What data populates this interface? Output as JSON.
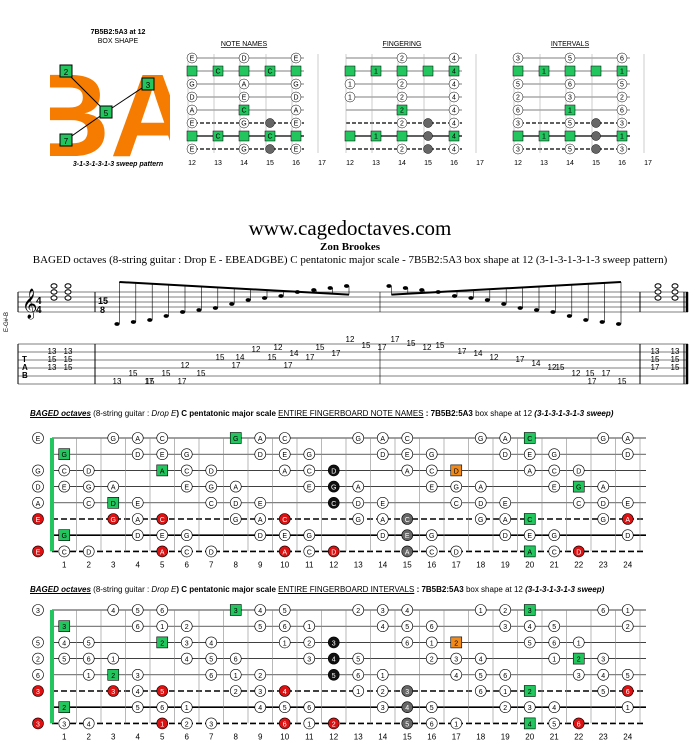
{
  "shape": {
    "title_line1": "7B5B2:5A3 at 12",
    "title_line2": "BOX SHAPE",
    "caption": "3-1-3-1-3-1-3 sweep pattern",
    "letters": "BA",
    "dots": [
      "2",
      "3",
      "5",
      "7"
    ]
  },
  "minis": [
    {
      "title": "NOTE NAMES",
      "labels": [
        [
          "E",
          "",
          "D",
          "",
          "E"
        ],
        [
          "",
          "C",
          "",
          "C",
          ""
        ],
        [
          "G",
          "",
          "A",
          "",
          "G"
        ],
        [
          "D",
          "",
          "E",
          "",
          "D"
        ],
        [
          "A",
          "",
          "C",
          "",
          "A"
        ],
        [
          "E",
          "",
          "G",
          "",
          "E"
        ],
        [
          "",
          "C",
          "",
          "C",
          ""
        ],
        [
          "E",
          "",
          "G",
          "",
          "E"
        ]
      ]
    },
    {
      "title": "FINGERING",
      "labels": [
        [
          "",
          "",
          "2",
          "",
          "4"
        ],
        [
          "",
          "1",
          "",
          "",
          "4"
        ],
        [
          "1",
          "",
          "2",
          "",
          "4"
        ],
        [
          "1",
          "",
          "2",
          "",
          "4"
        ],
        [
          "",
          "",
          "2",
          "",
          "4"
        ],
        [
          "",
          "",
          "2",
          "",
          "4"
        ],
        [
          "",
          "1",
          "",
          "",
          "4"
        ],
        [
          "",
          "",
          "2",
          "",
          "4"
        ]
      ]
    },
    {
      "title": "INTERVALS",
      "labels": [
        [
          "3",
          "",
          "5",
          "",
          "6"
        ],
        [
          "",
          "1",
          "",
          "",
          "1"
        ],
        [
          "5",
          "",
          "6",
          "",
          "5"
        ],
        [
          "2",
          "",
          "3",
          "",
          "2"
        ],
        [
          "6",
          "",
          "1",
          "",
          "6"
        ],
        [
          "3",
          "",
          "5",
          "",
          "3"
        ],
        [
          "",
          "1",
          "",
          "",
          "1"
        ],
        [
          "3",
          "",
          "5",
          "",
          "3"
        ]
      ]
    }
  ],
  "mini_frets": [
    "12",
    "13",
    "14",
    "15",
    "16",
    "17"
  ],
  "site": "www.cagedoctaves.com",
  "author": "Zon Brookes",
  "subtitle": "BAGED octaves (8-string guitar : Drop E - EBEADGBE) C pentatonic major scale - 7B5B2:5A3 box shape at 12 (3-1-3-1-3-1-3 sweep pattern)",
  "score": {
    "tuning": "E-G#-B",
    "time1": "4/4",
    "time2": "15/8",
    "tab_numbers": [
      [
        "13",
        "15",
        "13"
      ],
      [
        "13",
        "15",
        "15"
      ],
      [
        "13",
        "15",
        "17"
      ],
      [
        "15",
        "15",
        "17"
      ],
      [
        "12",
        "15"
      ],
      [
        "15",
        "17"
      ],
      [
        "12",
        "15",
        "17"
      ],
      [
        "14"
      ],
      [
        "12",
        "14",
        "17"
      ],
      [
        "15",
        "17"
      ],
      [
        "12",
        "15",
        "17"
      ],
      [
        "17",
        "15",
        "12"
      ],
      [
        "15"
      ],
      [
        "17",
        "14",
        "12"
      ],
      [
        "17",
        "14",
        "12"
      ],
      [
        "15",
        "12",
        "17"
      ],
      [
        "15",
        "17",
        "15"
      ],
      [
        "13",
        "15",
        "17"
      ],
      [
        "13",
        "15",
        "15"
      ]
    ]
  },
  "board_notes": {
    "title_prefix": "BAGED octaves",
    "title_rest": "(8-string guitar :",
    "tuning": "Drop E",
    "title_scale": ") C pentatonic major scale",
    "title_entire": "ENTIRE FINGERBOARD NOTE NAMES",
    "title_box": ": 7B5B2:5A3",
    "title_tail": "box shape at 12",
    "title_sweep": "(3-1-3-1-3-1-3 sweep)"
  },
  "board_intervals": {
    "title_prefix": "BAGED octaves",
    "title_rest": "(8-string guitar :",
    "tuning": "Drop E",
    "title_scale": ") C pentatonic major scale",
    "title_entire": "ENTIRE FINGERBOARD INTERVALS",
    "title_box": ": 7B5B2:5A3",
    "title_tail": "box shape at 12",
    "title_sweep": "(3-1-3-1-3-1-3 sweep)"
  },
  "frets": [
    "1",
    "2",
    "3",
    "4",
    "5",
    "6",
    "7",
    "8",
    "9",
    "10",
    "11",
    "12",
    "13",
    "14",
    "15",
    "16",
    "17",
    "18",
    "19",
    "20",
    "21",
    "22",
    "23",
    "24"
  ],
  "open_notes": [
    "E",
    "",
    "G",
    "D",
    "A",
    "E",
    "",
    "E"
  ],
  "open_intervals": [
    "3",
    "",
    "5",
    "2",
    "6",
    "3",
    "",
    "3"
  ],
  "colors": {
    "green": "#22c55e",
    "red": "#dd1111",
    "orange": "#f08a1c",
    "black": "#111111",
    "gray": "#666666",
    "shape_orange": "#f57c00"
  }
}
